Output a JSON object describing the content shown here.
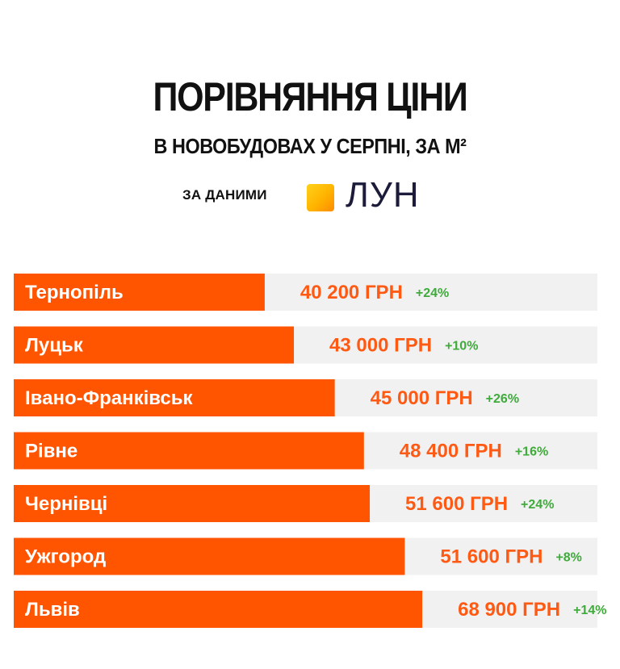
{
  "header": {
    "title": "ПОРІВНЯННЯ ЦІНИ",
    "subtitle": "В НОВОБУДОВАХ У СЕРПНІ, ЗА М²",
    "source_label": "ЗА ДАНИМИ",
    "source_brand": "ЛУН"
  },
  "colors": {
    "bar": "#ff5400",
    "track": "#f1f1f1",
    "value": "#ff5a14",
    "change": "#3eab3a"
  },
  "chart_data": {
    "type": "bar",
    "orientation": "horizontal",
    "unit": "ГРН",
    "categories": [
      "Тернопіль",
      "Луцьк",
      "Івано-Франківськ",
      "Рівне",
      "Чернівці",
      "Ужгород",
      "Львів"
    ],
    "values": [
      40200,
      43000,
      45000,
      48400,
      51600,
      51600,
      68900
    ],
    "value_labels": [
      "40 200 ГРН",
      "43 000 ГРН",
      "45 000 ГРН",
      "48 400 ГРН",
      "51 600 ГРН",
      "51 600 ГРН",
      "68 900 ГРН"
    ],
    "changes": [
      "+24%",
      "+10%",
      "+26%",
      "+16%",
      "+24%",
      "+8%",
      "+14%"
    ],
    "bar_fill_fraction": [
      0.43,
      0.48,
      0.55,
      0.6,
      0.61,
      0.67,
      0.7
    ],
    "grid": false,
    "legend": "none"
  }
}
